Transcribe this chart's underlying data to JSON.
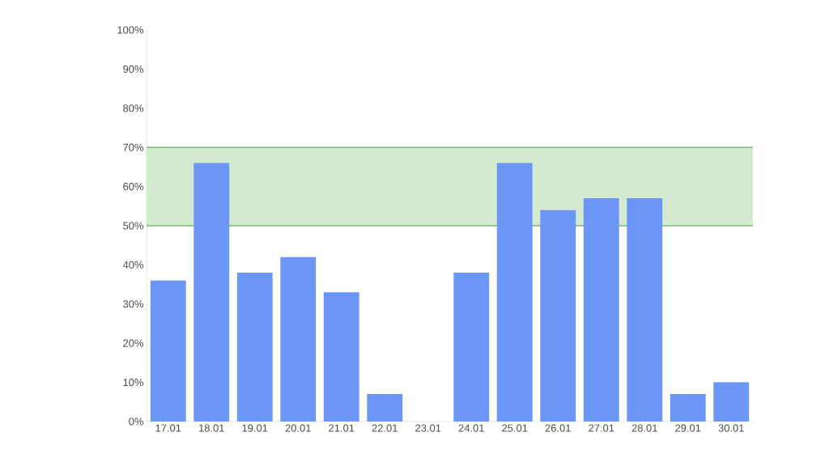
{
  "chart_data": {
    "type": "bar",
    "categories": [
      "17.01",
      "18.01",
      "19.01",
      "20.01",
      "21.01",
      "22.01",
      "23.01",
      "24.01",
      "25.01",
      "26.01",
      "27.01",
      "28.01",
      "29.01",
      "30.01"
    ],
    "values": [
      36,
      66,
      38,
      42,
      33,
      7,
      0,
      38,
      66,
      54,
      57,
      57,
      7,
      10
    ],
    "color": "#6b96f5",
    "ylim": [
      0,
      100
    ],
    "yticks": [
      {
        "value": 0,
        "label": "0%"
      },
      {
        "value": 10,
        "label": "10%"
      },
      {
        "value": 20,
        "label": "20%"
      },
      {
        "value": 30,
        "label": "30%"
      },
      {
        "value": 40,
        "label": "40%"
      },
      {
        "value": 50,
        "label": "50%"
      },
      {
        "value": 60,
        "label": "60%"
      },
      {
        "value": 70,
        "label": "70%"
      },
      {
        "value": 80,
        "label": "80%"
      },
      {
        "value": 90,
        "label": "90%"
      },
      {
        "value": 100,
        "label": "100%"
      }
    ],
    "bands": [
      {
        "axis": "y",
        "from": 50,
        "to": 70,
        "color": "#d4ead0"
      }
    ]
  }
}
